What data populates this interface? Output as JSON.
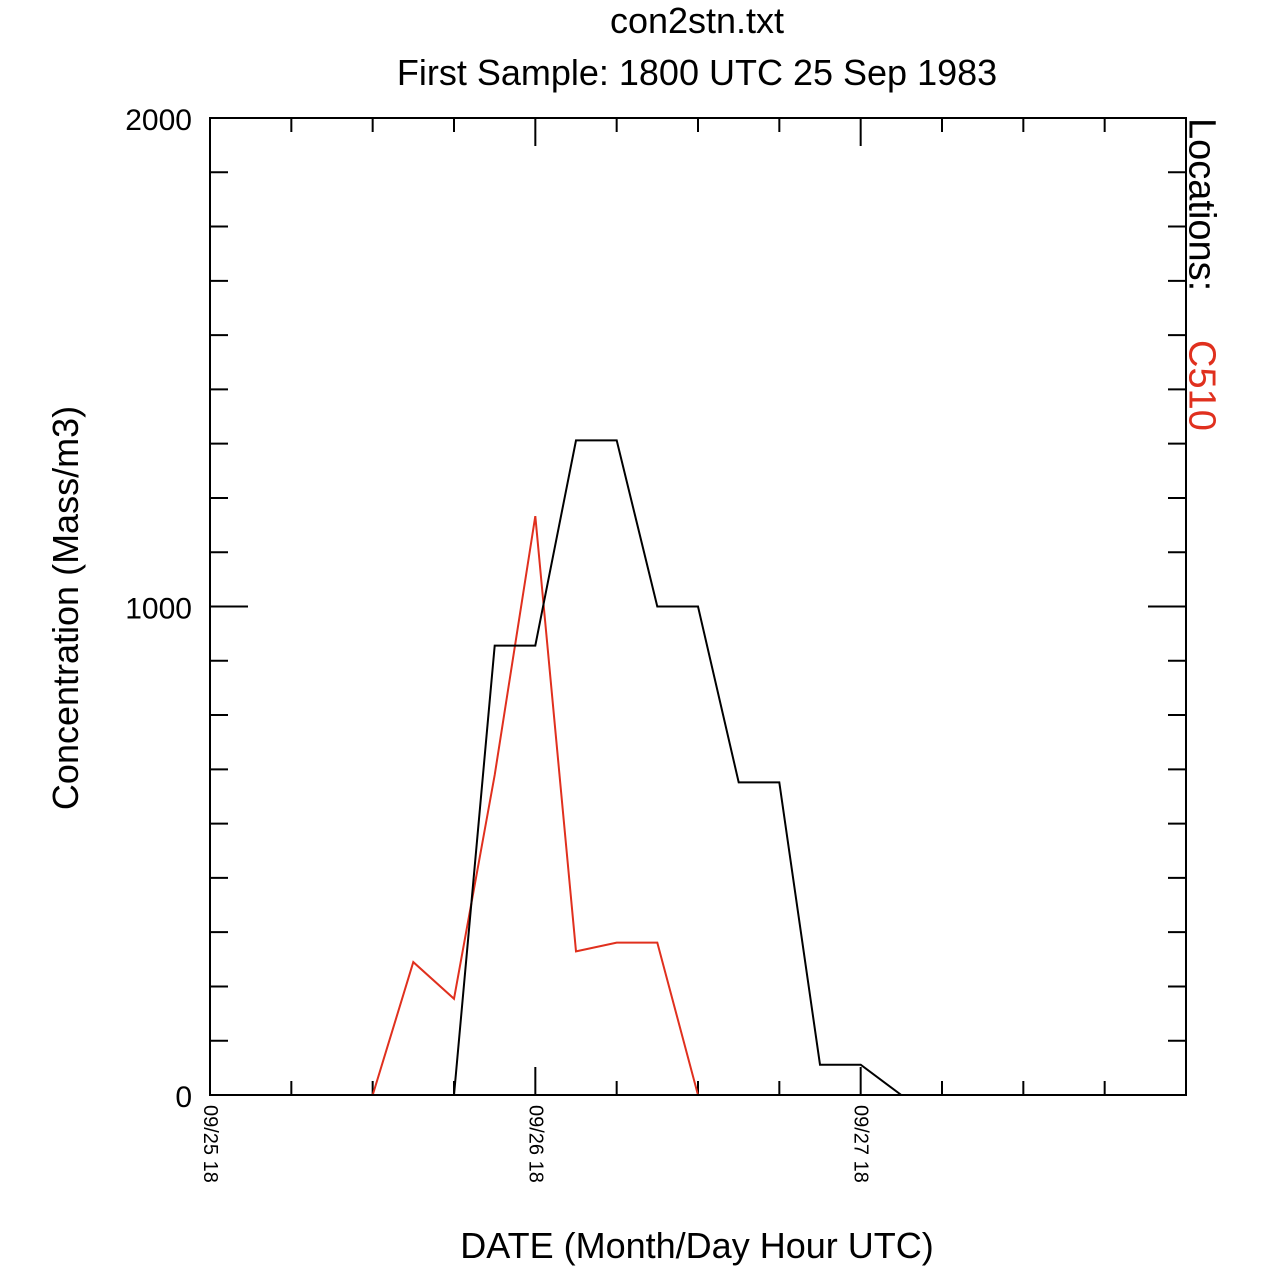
{
  "chart_data": {
    "type": "line",
    "title": "con2stn.txt",
    "subtitle": "First Sample: 1800 UTC 25 Sep 1983",
    "xlabel": "DATE (Month/Day Hour UTC)",
    "ylabel": "Concentration (Mass/m3)",
    "ylim": [
      0,
      2000
    ],
    "xlim": [
      0,
      72
    ],
    "y_ticks": [
      {
        "value": 0,
        "label": "0"
      },
      {
        "value": 1000,
        "label": "1000"
      },
      {
        "value": 2000,
        "label": "2000"
      }
    ],
    "x_ticks": [
      {
        "value": 0,
        "label": "09/25 18"
      },
      {
        "value": 24,
        "label": "09/26 18"
      },
      {
        "value": 48,
        "label": "09/27 18"
      }
    ],
    "x_minor_step": 6,
    "y_minor_step": 111.111,
    "legend_title": "Locations:",
    "series": [
      {
        "name": "C510",
        "color": "#e0301e",
        "x": [
          12,
          15,
          18,
          21,
          24,
          27,
          30,
          33,
          36
        ],
        "y": [
          0,
          272,
          197,
          655,
          1185,
          294,
          312,
          312,
          0
        ]
      },
      {
        "name": "",
        "color": "#000000",
        "x": [
          18,
          21,
          24,
          27,
          30,
          33,
          36,
          39,
          42,
          45,
          48,
          51
        ],
        "y": [
          0,
          920,
          920,
          1340,
          1340,
          1000,
          1000,
          640,
          640,
          62,
          62,
          0
        ]
      }
    ]
  }
}
